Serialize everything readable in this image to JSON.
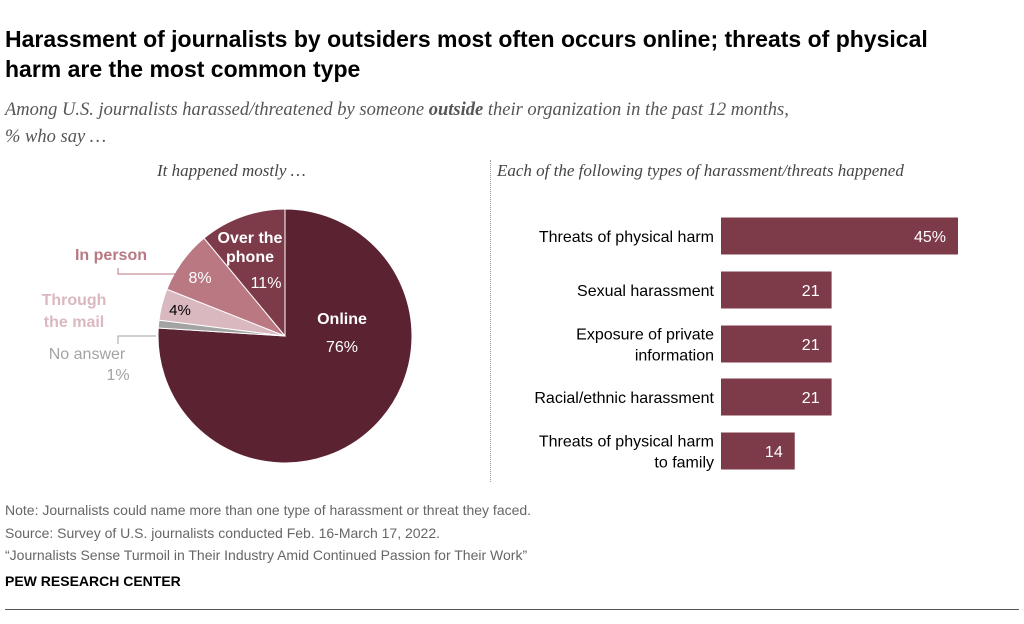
{
  "header": {
    "title_line1": "Harassment of journalists by outsiders most often occurs online; threats of physical",
    "title_line2": "harm are the most common type",
    "subtitle_pre": "Among U.S. journalists harassed/threatened by someone ",
    "subtitle_bold": "outside",
    "subtitle_post": " their organization in the past 12 months,",
    "subtitle_line2": "% who say …"
  },
  "chart_data": [
    {
      "type": "pie",
      "title": "It happened mostly …",
      "slices": [
        {
          "label": "Online",
          "value": 76,
          "value_label": "76%",
          "color": "#5b2331"
        },
        {
          "label": "No answer",
          "value": 1,
          "value_label": "1%",
          "color": "#a3a3a3"
        },
        {
          "label": "Through the mail",
          "value": 4,
          "value_label": "4%",
          "color": "#dab8bf"
        },
        {
          "label": "In person",
          "value": 8,
          "value_label": "8%",
          "color": "#b97882"
        },
        {
          "label": "Over the phone",
          "value": 11,
          "value_label": "11%",
          "color": "#7d3b4a"
        }
      ]
    },
    {
      "type": "bar",
      "orientation": "horizontal",
      "title": "Each of the following types of harassment/threats happened",
      "categories": [
        "Threats of physical harm",
        "Sexual harassment",
        "Exposure of private information",
        "Racial/ethnic harassment",
        "Threats of physical harm to family"
      ],
      "values": [
        45,
        21,
        21,
        21,
        14
      ],
      "value_labels": [
        "45%",
        "21",
        "21",
        "21",
        "14"
      ],
      "bar_color": "#7d3b4a"
    }
  ],
  "footer": {
    "note": "Note: Journalists could name more than one type of harassment or threat they faced.",
    "source": "Source: Survey of U.S. journalists conducted Feb. 16-March 17, 2022.",
    "report": "“Journalists Sense Turmoil in Their Industry Amid Continued Passion for Their Work”",
    "brand": "PEW RESEARCH CENTER"
  }
}
